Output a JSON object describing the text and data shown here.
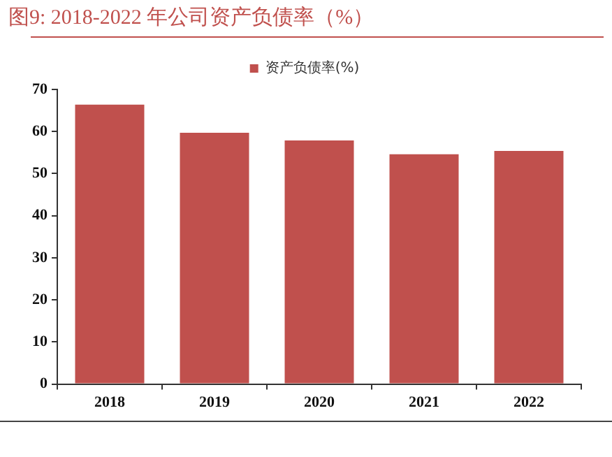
{
  "chart_data": {
    "type": "bar",
    "title": "图9:    2018-2022 年公司资产负债率（%）",
    "categories": [
      "2018",
      "2019",
      "2020",
      "2021",
      "2022"
    ],
    "series": [
      {
        "name": "资产负债率(%)",
        "color": "#c0504d",
        "values": [
          66.4,
          59.7,
          57.9,
          54.6,
          55.4
        ]
      }
    ],
    "ylim": [
      0,
      70
    ],
    "yticks": [
      0,
      10,
      20,
      30,
      40,
      50,
      60,
      70
    ],
    "grid": false,
    "legend": "top"
  }
}
